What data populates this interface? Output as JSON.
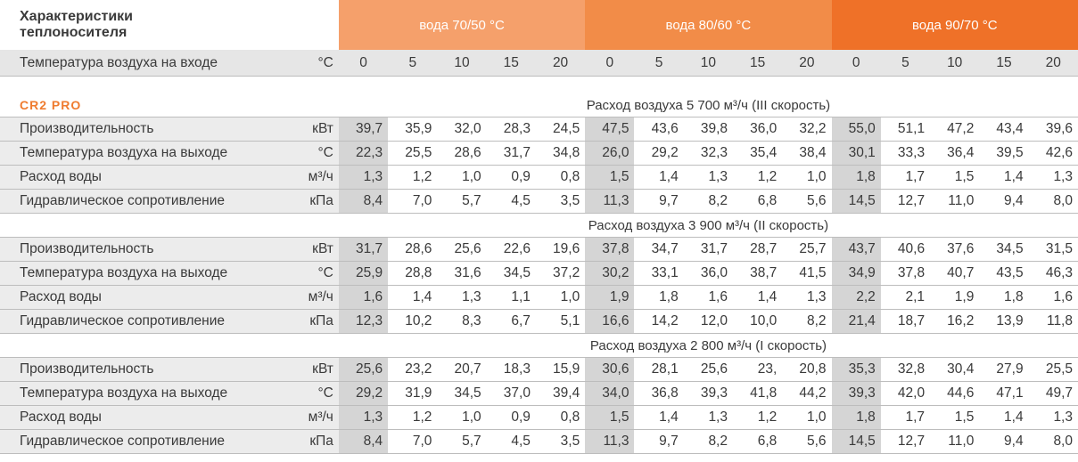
{
  "header": {
    "title_line1": "Характеристики",
    "title_line2": "теплоносителя",
    "water_bands": [
      {
        "label": "вода 70/50 °C",
        "color": "#f5a06b"
      },
      {
        "label": "вода 80/60 °C",
        "color": "#f28c48"
      },
      {
        "label": "вода 90/70 °C",
        "color": "#ef7128"
      }
    ]
  },
  "inlet": {
    "label": "Температура воздуха на входе",
    "unit": "°C",
    "values": [
      "0",
      "5",
      "10",
      "15",
      "20",
      "0",
      "5",
      "10",
      "15",
      "20",
      "0",
      "5",
      "10",
      "15",
      "20"
    ]
  },
  "model": "CR2 PRO",
  "sections": [
    {
      "flow": "Расход воздуха 5 700 м³/ч (III скорость)",
      "rows": [
        {
          "label": "Производительность",
          "unit": "кВт",
          "values": [
            "39,7",
            "35,9",
            "32,0",
            "28,3",
            "24,5",
            "47,5",
            "43,6",
            "39,8",
            "36,0",
            "32,2",
            "55,0",
            "51,1",
            "47,2",
            "43,4",
            "39,6"
          ]
        },
        {
          "label": "Температура воздуха на выходе",
          "unit": "°C",
          "values": [
            "22,3",
            "25,5",
            "28,6",
            "31,7",
            "34,8",
            "26,0",
            "29,2",
            "32,3",
            "35,4",
            "38,4",
            "30,1",
            "33,3",
            "36,4",
            "39,5",
            "42,6"
          ]
        },
        {
          "label": "Расход воды",
          "unit": "м³/ч",
          "values": [
            "1,3",
            "1,2",
            "1,0",
            "0,9",
            "0,8",
            "1,5",
            "1,4",
            "1,3",
            "1,2",
            "1,0",
            "1,8",
            "1,7",
            "1,5",
            "1,4",
            "1,3"
          ]
        },
        {
          "label": "Гидравлическое сопротивление",
          "unit": "кПа",
          "values": [
            "8,4",
            "7,0",
            "5,7",
            "4,5",
            "3,5",
            "11,3",
            "9,7",
            "8,2",
            "6,8",
            "5,6",
            "14,5",
            "12,7",
            "11,0",
            "9,4",
            "8,0"
          ]
        }
      ]
    },
    {
      "flow": "Расход воздуха 3 900 м³/ч (II скорость)",
      "rows": [
        {
          "label": "Производительность",
          "unit": "кВт",
          "values": [
            "31,7",
            "28,6",
            "25,6",
            "22,6",
            "19,6",
            "37,8",
            "34,7",
            "31,7",
            "28,7",
            "25,7",
            "43,7",
            "40,6",
            "37,6",
            "34,5",
            "31,5"
          ]
        },
        {
          "label": "Температура воздуха на выходе",
          "unit": "°C",
          "values": [
            "25,9",
            "28,8",
            "31,6",
            "34,5",
            "37,2",
            "30,2",
            "33,1",
            "36,0",
            "38,7",
            "41,5",
            "34,9",
            "37,8",
            "40,7",
            "43,5",
            "46,3"
          ]
        },
        {
          "label": "Расход воды",
          "unit": "м³/ч",
          "values": [
            "1,6",
            "1,4",
            "1,3",
            "1,1",
            "1,0",
            "1,9",
            "1,8",
            "1,6",
            "1,4",
            "1,3",
            "2,2",
            "2,1",
            "1,9",
            "1,8",
            "1,6"
          ]
        },
        {
          "label": "Гидравлическое сопротивление",
          "unit": "кПа",
          "values": [
            "12,3",
            "10,2",
            "8,3",
            "6,7",
            "5,1",
            "16,6",
            "14,2",
            "12,0",
            "10,0",
            "8,2",
            "21,4",
            "18,7",
            "16,2",
            "13,9",
            "11,8"
          ]
        }
      ]
    },
    {
      "flow": "Расход воздуха 2 800 м³/ч (I скорость)",
      "rows": [
        {
          "label": "Производительность",
          "unit": "кВт",
          "values": [
            "25,6",
            "23,2",
            "20,7",
            "18,3",
            "15,9",
            "30,6",
            "28,1",
            "25,6",
            "23,",
            "20,8",
            "35,3",
            "32,8",
            "30,4",
            "27,9",
            "25,5"
          ]
        },
        {
          "label": "Температура воздуха на выходе",
          "unit": "°C",
          "values": [
            "29,2",
            "31,9",
            "34,5",
            "37,0",
            "39,4",
            "34,0",
            "36,8",
            "39,3",
            "41,8",
            "44,2",
            "39,3",
            "42,0",
            "44,6",
            "47,1",
            "49,7"
          ]
        },
        {
          "label": "Расход воды",
          "unit": "м³/ч",
          "values": [
            "1,3",
            "1,2",
            "1,0",
            "0,9",
            "0,8",
            "1,5",
            "1,4",
            "1,3",
            "1,2",
            "1,0",
            "1,8",
            "1,7",
            "1,5",
            "1,4",
            "1,3"
          ]
        },
        {
          "label": "Гидравлическое сопротивление",
          "unit": "кПа",
          "values": [
            "8,4",
            "7,0",
            "5,7",
            "4,5",
            "3,5",
            "11,3",
            "9,7",
            "8,2",
            "6,8",
            "5,6",
            "14,5",
            "12,7",
            "11,0",
            "9,4",
            "8,0"
          ]
        }
      ]
    }
  ]
}
